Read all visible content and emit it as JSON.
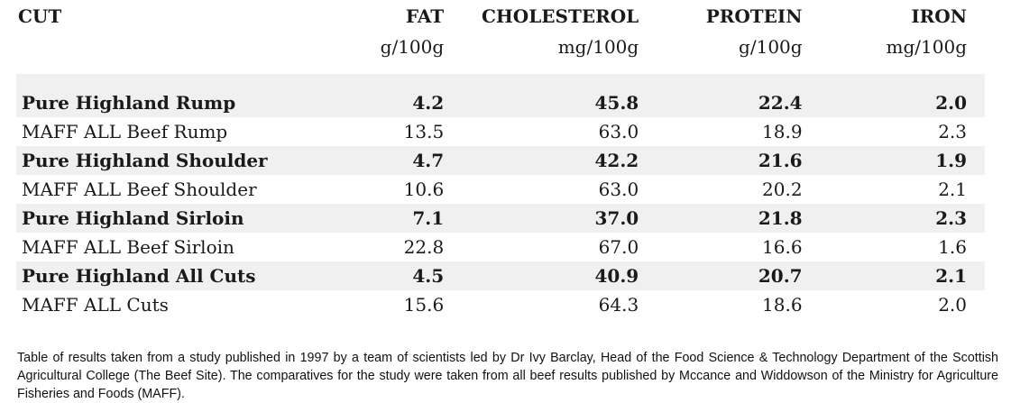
{
  "headers": {
    "cut": "CUT",
    "fat": "FAT",
    "cholesterol": "CHOLESTEROL",
    "protein": "PROTEIN",
    "iron": "IRON"
  },
  "units": {
    "fat": "g/100g",
    "cholesterol": "mg/100g",
    "protein": "g/100g",
    "iron": "mg/100g"
  },
  "rows": [
    {
      "cut": "Pure Highland Rump",
      "fat": "4.2",
      "cholesterol": "45.8",
      "protein": "22.4",
      "iron": "2.0"
    },
    {
      "cut": "MAFF ALL Beef Rump",
      "fat": "13.5",
      "cholesterol": "63.0",
      "protein": "18.9",
      "iron": "2.3"
    },
    {
      "cut": "Pure Highland Shoulder",
      "fat": "4.7",
      "cholesterol": "42.2",
      "protein": "21.6",
      "iron": "1.9"
    },
    {
      "cut": "MAFF ALL Beef Shoulder",
      "fat": "10.6",
      "cholesterol": "63.0",
      "protein": "20.2",
      "iron": "2.1"
    },
    {
      "cut": "Pure Highland Sirloin",
      "fat": "7.1",
      "cholesterol": "37.0",
      "protein": "21.8",
      "iron": "2.3"
    },
    {
      "cut": "MAFF ALL Beef Sirloin",
      "fat": "22.8",
      "cholesterol": "67.0",
      "protein": "16.6",
      "iron": "1.6"
    },
    {
      "cut": "Pure Highland All Cuts",
      "fat": "4.5",
      "cholesterol": "40.9",
      "protein": "20.7",
      "iron": "2.1"
    },
    {
      "cut": "MAFF ALL Cuts",
      "fat": "15.6",
      "cholesterol": "64.3",
      "protein": "18.6",
      "iron": "2.0"
    }
  ],
  "caption": "Table of results taken from a study published in 1997 by a team of scientists led by Dr Ivy Barclay, Head of the Food Science & Technology Department of the Scottish Agricultural College (The Beef Site). The comparatives for the study were taken from all beef results published by Mccance and Widdowson  of  the Ministry for Agriculture Fisheries and Foods (MAFF).",
  "colors": {
    "shaded_row": "#f0f0f0",
    "text": "#1a1a1a"
  }
}
